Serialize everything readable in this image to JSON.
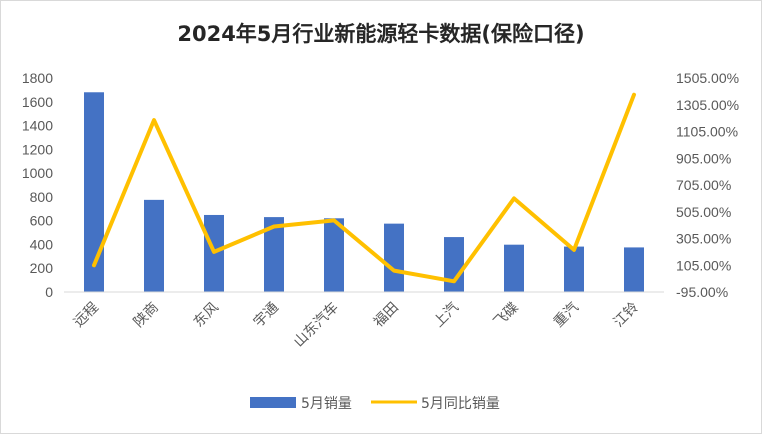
{
  "chart_data": {
    "type": "bar",
    "title": "2024年5月行业新能源轻卡数据(保险口径)",
    "categories": [
      "远程",
      "陕商",
      "东风",
      "宇通",
      "山东汽车",
      "福田",
      "上汽",
      "飞碟",
      "重汽",
      "江铃"
    ],
    "series": [
      {
        "name": "5月销量",
        "type": "bar",
        "axis": "left",
        "color": "#4472c4",
        "values": [
          1680,
          775,
          648,
          630,
          620,
          575,
          462,
          398,
          382,
          375
        ]
      },
      {
        "name": "5月同比销量",
        "type": "line",
        "axis": "right",
        "color": "#ffc000",
        "values": [
          105,
          1190,
          205,
          395,
          440,
          65,
          -15,
          605,
          220,
          1380
        ]
      }
    ],
    "y_left": {
      "min": 0,
      "max": 1800,
      "step": 200,
      "ticks": [
        "0",
        "200",
        "400",
        "600",
        "800",
        "1000",
        "1200",
        "1400",
        "1600",
        "1800"
      ]
    },
    "y_right": {
      "min": -95,
      "max": 1505,
      "step": 200,
      "ticks": [
        "-95.00%",
        "105.00%",
        "305.00%",
        "505.00%",
        "705.00%",
        "905.00%",
        "1105.00%",
        "1305.00%",
        "1505.00%"
      ]
    },
    "grid": false,
    "legend": "bottom"
  }
}
